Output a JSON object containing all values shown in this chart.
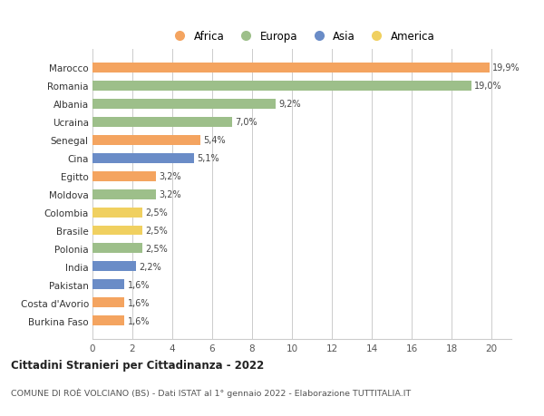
{
  "categories": [
    "Burkina Faso",
    "Costa d'Avorio",
    "Pakistan",
    "India",
    "Polonia",
    "Brasile",
    "Colombia",
    "Moldova",
    "Egitto",
    "Cina",
    "Senegal",
    "Ucraina",
    "Albania",
    "Romania",
    "Marocco"
  ],
  "values": [
    1.6,
    1.6,
    1.6,
    2.2,
    2.5,
    2.5,
    2.5,
    3.2,
    3.2,
    5.1,
    5.4,
    7.0,
    9.2,
    19.0,
    19.9
  ],
  "labels": [
    "1,6%",
    "1,6%",
    "1,6%",
    "2,2%",
    "2,5%",
    "2,5%",
    "2,5%",
    "3,2%",
    "3,2%",
    "5,1%",
    "5,4%",
    "7,0%",
    "9,2%",
    "19,0%",
    "19,9%"
  ],
  "colors": [
    "#F4A460",
    "#F4A460",
    "#6A8CC7",
    "#6A8CC7",
    "#9DBF8A",
    "#F0D060",
    "#F0D060",
    "#9DBF8A",
    "#F4A460",
    "#6A8CC7",
    "#F4A460",
    "#9DBF8A",
    "#9DBF8A",
    "#9DBF8A",
    "#F4A460"
  ],
  "continent_colors": {
    "Africa": "#F4A460",
    "Europa": "#9DBF8A",
    "Asia": "#6A8CC7",
    "America": "#F0D060"
  },
  "title_bold": "Cittadini Stranieri per Cittadinanza - 2022",
  "subtitle": "COMUNE DI ROÈ VOLCIANO (BS) - Dati ISTAT al 1° gennaio 2022 - Elaborazione TUTTITALIA.IT",
  "xlim": [
    0,
    21
  ],
  "xticks": [
    0,
    2,
    4,
    6,
    8,
    10,
    12,
    14,
    16,
    18,
    20
  ],
  "bg_color": "#ffffff",
  "grid_color": "#cccccc",
  "bar_height": 0.55
}
